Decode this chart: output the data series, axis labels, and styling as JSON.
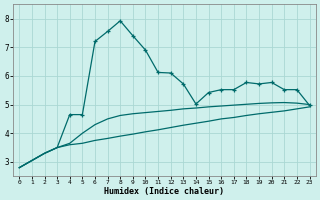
{
  "xlabel": "Humidex (Indice chaleur)",
  "background_color": "#cff0ec",
  "grid_color": "#aad8d3",
  "line_color": "#006b6b",
  "xlim": [
    -0.5,
    23.5
  ],
  "ylim": [
    2.5,
    8.5
  ],
  "yticks": [
    3,
    4,
    5,
    6,
    7,
    8
  ],
  "xticks": [
    0,
    1,
    2,
    3,
    4,
    5,
    6,
    7,
    8,
    9,
    10,
    11,
    12,
    13,
    14,
    15,
    16,
    17,
    18,
    19,
    20,
    21,
    22,
    23
  ],
  "line1_x": [
    0,
    1,
    2,
    3,
    4,
    5,
    6,
    7,
    8,
    9,
    10,
    11,
    12,
    13,
    14,
    15,
    16,
    17,
    18,
    19,
    20,
    21,
    22,
    23
  ],
  "line1_y": [
    2.8,
    3.05,
    3.3,
    3.5,
    3.6,
    3.65,
    3.75,
    3.82,
    3.9,
    3.97,
    4.05,
    4.12,
    4.2,
    4.28,
    4.35,
    4.42,
    4.5,
    4.55,
    4.62,
    4.68,
    4.73,
    4.78,
    4.85,
    4.92
  ],
  "line2_x": [
    0,
    1,
    2,
    3,
    4,
    5,
    6,
    7,
    8,
    9,
    10,
    11,
    12,
    13,
    14,
    15,
    16,
    17,
    18,
    19,
    20,
    21,
    22,
    23
  ],
  "line2_y": [
    2.8,
    3.05,
    3.3,
    3.5,
    3.65,
    4.0,
    4.3,
    4.5,
    4.62,
    4.68,
    4.72,
    4.76,
    4.8,
    4.85,
    4.88,
    4.92,
    4.95,
    4.98,
    5.01,
    5.04,
    5.06,
    5.07,
    5.05,
    5.0
  ],
  "line3_x": [
    0,
    1,
    2,
    3,
    4,
    5,
    6,
    7,
    8,
    9,
    10,
    11,
    12,
    13,
    14,
    15,
    16,
    17,
    18,
    19,
    20,
    21,
    22,
    23
  ],
  "line3_y": [
    2.8,
    3.05,
    3.3,
    3.5,
    4.65,
    4.65,
    7.2,
    7.55,
    7.92,
    7.4,
    6.9,
    6.12,
    6.1,
    5.72,
    5.02,
    5.42,
    5.52,
    5.52,
    5.77,
    5.72,
    5.77,
    5.52,
    5.52,
    4.97
  ],
  "markers_x": [
    4,
    5,
    6,
    7,
    8,
    9,
    10,
    11,
    12,
    13,
    14,
    15,
    16,
    17,
    18,
    19,
    20,
    21,
    22,
    23
  ],
  "markers_y": [
    4.65,
    4.65,
    7.2,
    7.55,
    7.92,
    7.4,
    6.9,
    6.12,
    6.1,
    5.72,
    5.02,
    5.42,
    5.52,
    5.52,
    5.77,
    5.72,
    5.77,
    5.52,
    5.52,
    4.97
  ]
}
